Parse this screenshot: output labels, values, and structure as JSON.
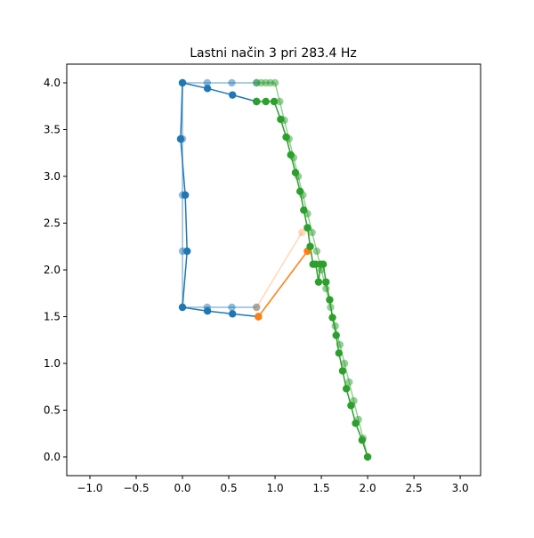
{
  "chart_data": {
    "type": "line",
    "title": "Lastni način 3 pri 283.4 Hz",
    "xlabel": "",
    "ylabel": "",
    "xlim": [
      -1.25,
      3.22
    ],
    "ylim": [
      -0.2,
      4.2
    ],
    "xticks": [
      -1.0,
      -0.5,
      0.0,
      0.5,
      1.0,
      1.5,
      2.0,
      2.5,
      3.0
    ],
    "xtick_labels": [
      "−1.0",
      "−0.5",
      "0.0",
      "0.5",
      "1.0",
      "1.5",
      "2.0",
      "2.5",
      "3.0"
    ],
    "yticks": [
      0.0,
      0.5,
      1.0,
      1.5,
      2.0,
      2.5,
      3.0,
      3.5,
      4.0
    ],
    "ytick_labels": [
      "0.0",
      "0.5",
      "1.0",
      "1.5",
      "2.0",
      "2.5",
      "3.0",
      "3.5",
      "4.0"
    ],
    "grid": false,
    "legend": "none",
    "series": [
      {
        "role": "undeformed",
        "color": "#1f77b4",
        "alpha": 0.5,
        "x": [
          0.8,
          0.533,
          0.267,
          0.0,
          0.0,
          0.0,
          0.0,
          0.0,
          0.267,
          0.533,
          0.8
        ],
        "y": [
          1.6,
          1.6,
          1.6,
          1.6,
          2.2,
          2.8,
          3.4,
          4.0,
          4.0,
          4.0,
          4.0
        ]
      },
      {
        "role": "undeformed",
        "color": "#ff7f0e",
        "alpha": 0.3,
        "x": [
          0.8,
          1.29
        ],
        "y": [
          1.6,
          2.4
        ]
      },
      {
        "role": "undeformed",
        "color": "#2ca02c",
        "alpha": 0.5,
        "x": [
          2.0,
          1.95,
          1.9,
          1.85,
          1.8,
          1.75,
          1.7,
          1.65,
          1.6,
          1.55,
          1.5,
          1.45,
          1.4,
          1.35,
          1.3,
          1.25,
          1.2,
          1.15,
          1.1,
          1.05,
          1.0,
          0.95,
          0.9,
          0.85,
          0.8
        ],
        "y": [
          0.0,
          0.2,
          0.4,
          0.6,
          0.8,
          1.0,
          1.2,
          1.4,
          1.6,
          1.8,
          2.0,
          2.2,
          2.4,
          2.6,
          2.8,
          3.0,
          3.2,
          3.4,
          3.6,
          3.8,
          4.0,
          4.0,
          4.0,
          4.0,
          4.0
        ]
      },
      {
        "role": "deformed",
        "color": "#1f77b4",
        "alpha": 1.0,
        "x": [
          0.82,
          0.54,
          0.27,
          0.0,
          0.05,
          0.03,
          -0.02,
          0.0,
          0.27,
          0.54,
          0.8
        ],
        "y": [
          1.5,
          1.53,
          1.56,
          1.6,
          2.2,
          2.8,
          3.4,
          4.0,
          3.94,
          3.87,
          3.8
        ]
      },
      {
        "role": "deformed",
        "color": "#ff7f0e",
        "alpha": 1.0,
        "x": [
          0.82,
          1.35
        ],
        "y": [
          1.5,
          2.2
        ]
      },
      {
        "role": "deformed",
        "color": "#2ca02c",
        "alpha": 1.0,
        "x": [
          2.0,
          1.94,
          1.87,
          1.82,
          1.77,
          1.73,
          1.69,
          1.66,
          1.62,
          1.59,
          1.55,
          1.52,
          1.49,
          1.47,
          1.44,
          1.41,
          1.38,
          1.35,
          1.31,
          1.27,
          1.22,
          1.17,
          1.12,
          1.06,
          0.99,
          0.9,
          0.8
        ],
        "y": [
          0.0,
          0.18,
          0.36,
          0.55,
          0.73,
          0.92,
          1.11,
          1.3,
          1.49,
          1.68,
          1.87,
          2.06,
          2.06,
          1.87,
          2.06,
          2.06,
          2.25,
          2.45,
          2.64,
          2.84,
          3.04,
          3.23,
          3.42,
          3.61,
          3.8,
          3.8,
          3.8
        ]
      }
    ]
  }
}
